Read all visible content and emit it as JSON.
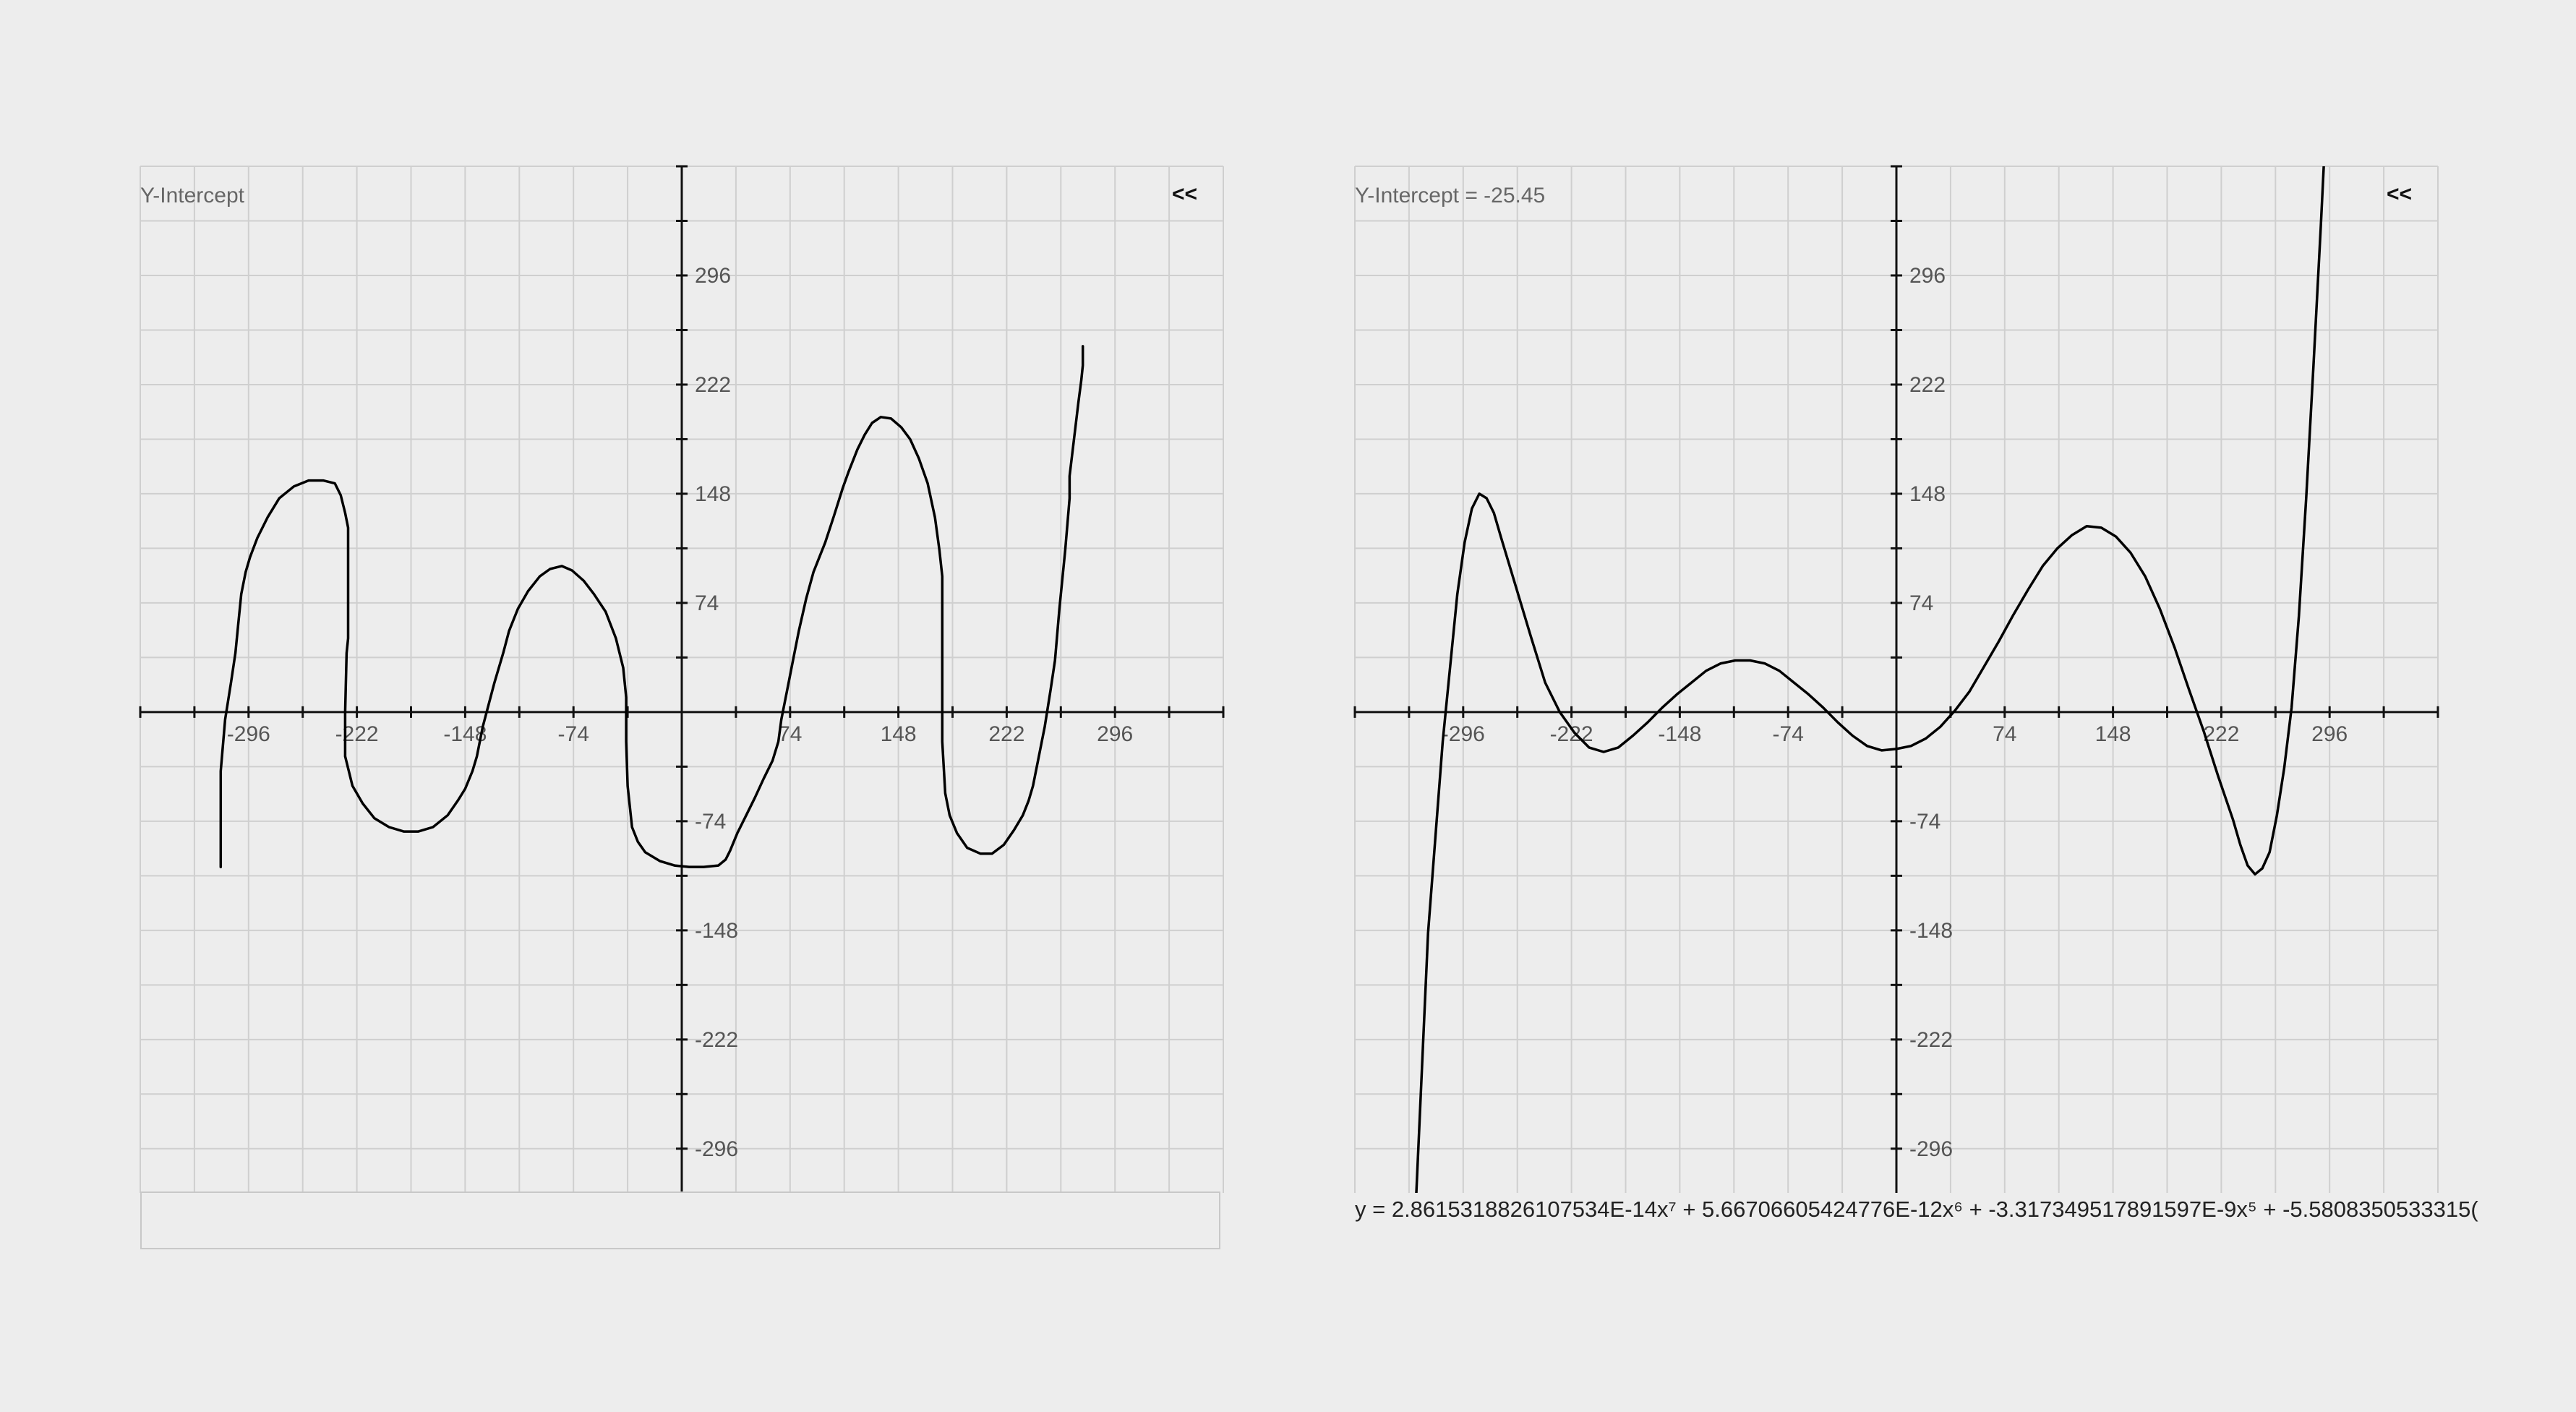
{
  "colors": {
    "background": "#ededed",
    "grid": "#cfcfcf",
    "axis": "#111111",
    "curve": "#000000",
    "label": "#555555"
  },
  "chart_data": [
    {
      "type": "line",
      "panel": "left",
      "header_label": "Y-Intercept",
      "collapse_label": "<<",
      "xlim": [
        -370,
        370
      ],
      "ylim": [
        -326,
        370
      ],
      "grid": true,
      "grid_step": 37,
      "x_tick_labels": [
        "-296",
        "-222",
        "-148",
        "-74",
        "74",
        "148",
        "222",
        "296"
      ],
      "y_tick_labels": [
        "296",
        "222",
        "148",
        "74",
        "-74",
        "-148",
        "-222",
        "-296"
      ],
      "formula_field": "",
      "series": [
        {
          "kind": "freehand",
          "points": [
            [
              -315,
              -105
            ],
            [
              -315,
              -40
            ],
            [
              -312,
              -5
            ],
            [
              -308,
              20
            ],
            [
              -305,
              40
            ],
            [
              -303,
              60
            ],
            [
              -301,
              80
            ],
            [
              -298,
              95
            ],
            [
              -295,
              105
            ],
            [
              -290,
              118
            ],
            [
              -283,
              132
            ],
            [
              -275,
              145
            ],
            [
              -265,
              153
            ],
            [
              -255,
              157
            ],
            [
              -245,
              157
            ],
            [
              -237,
              155
            ],
            [
              -233,
              147
            ],
            [
              -230,
              135
            ],
            [
              -228,
              125
            ],
            [
              -228,
              60
            ],
            [
              -228,
              50
            ],
            [
              -229,
              40
            ],
            [
              -230,
              0
            ],
            [
              -230,
              -30
            ],
            [
              -225,
              -50
            ],
            [
              -218,
              -62
            ],
            [
              -210,
              -72
            ],
            [
              -200,
              -78
            ],
            [
              -190,
              -81
            ],
            [
              -180,
              -81
            ],
            [
              -170,
              -78
            ],
            [
              -160,
              -70
            ],
            [
              -153,
              -60
            ],
            [
              -148,
              -52
            ],
            [
              -143,
              -40
            ],
            [
              -140,
              -30
            ],
            [
              -136,
              -10
            ],
            [
              -132,
              5
            ],
            [
              -128,
              20
            ],
            [
              -122,
              40
            ],
            [
              -118,
              55
            ],
            [
              -112,
              70
            ],
            [
              -105,
              82
            ],
            [
              -97,
              92
            ],
            [
              -90,
              97
            ],
            [
              -82,
              99
            ],
            [
              -75,
              96
            ],
            [
              -67,
              89
            ],
            [
              -60,
              80
            ],
            [
              -52,
              68
            ],
            [
              -45,
              50
            ],
            [
              -40,
              30
            ],
            [
              -38,
              10
            ],
            [
              -38,
              -20
            ],
            [
              -37,
              -50
            ],
            [
              -34,
              -78
            ],
            [
              -30,
              -88
            ],
            [
              -25,
              -95
            ],
            [
              -15,
              -101
            ],
            [
              -5,
              -104
            ],
            [
              5,
              -105
            ],
            [
              15,
              -105
            ],
            [
              25,
              -104
            ],
            [
              30,
              -100
            ],
            [
              33,
              -94
            ],
            [
              38,
              -82
            ],
            [
              44,
              -70
            ],
            [
              50,
              -58
            ],
            [
              56,
              -45
            ],
            [
              62,
              -33
            ],
            [
              66,
              -20
            ],
            [
              68,
              -5
            ],
            [
              72,
              15
            ],
            [
              76,
              35
            ],
            [
              80,
              55
            ],
            [
              85,
              77
            ],
            [
              90,
              95
            ],
            [
              94,
              105
            ],
            [
              98,
              115
            ],
            [
              104,
              133
            ],
            [
              110,
              152
            ],
            [
              114,
              163
            ],
            [
              120,
              178
            ],
            [
              125,
              188
            ],
            [
              130,
              196
            ],
            [
              136,
              200
            ],
            [
              143,
              199
            ],
            [
              150,
              193
            ],
            [
              156,
              185
            ],
            [
              162,
              172
            ],
            [
              168,
              155
            ],
            [
              173,
              132
            ],
            [
              176,
              110
            ],
            [
              178,
              92
            ],
            [
              178,
              80
            ],
            [
              178,
              40
            ],
            [
              178,
              -20
            ],
            [
              180,
              -55
            ],
            [
              183,
              -70
            ],
            [
              188,
              -82
            ],
            [
              195,
              -92
            ],
            [
              204,
              -96
            ],
            [
              212,
              -96
            ],
            [
              220,
              -90
            ],
            [
              227,
              -80
            ],
            [
              233,
              -70
            ],
            [
              237,
              -60
            ],
            [
              240,
              -50
            ],
            [
              244,
              -30
            ],
            [
              248,
              -10
            ],
            [
              252,
              15
            ],
            [
              255,
              35
            ],
            [
              258,
              70
            ],
            [
              262,
              110
            ],
            [
              265,
              145
            ],
            [
              265,
              160
            ],
            [
              268,
              185
            ],
            [
              271,
              210
            ],
            [
              273,
              225
            ],
            [
              274,
              235
            ],
            [
              274,
              248
            ]
          ]
        }
      ]
    },
    {
      "type": "line",
      "panel": "right",
      "header_label": "Y-Intercept = -25.45",
      "collapse_label": "<<",
      "xlim": [
        -370,
        370
      ],
      "ylim": [
        -326,
        370
      ],
      "grid": true,
      "grid_step": 37,
      "x_tick_labels": [
        "-296",
        "-222",
        "-148",
        "-74",
        "74",
        "148",
        "222",
        "296"
      ],
      "y_tick_labels": [
        "296",
        "222",
        "148",
        "74",
        "-74",
        "-148",
        "-222",
        "-296"
      ],
      "equation": "y = 2.8615318826107534E-14x⁷ + 5.66706605424776E-12x⁶ + -3.317349517891597E-9x⁵ + -5.5808350533315(",
      "series": [
        {
          "kind": "fitted-polynomial",
          "points": [
            [
              -328,
              -326
            ],
            [
              -320,
              -150
            ],
            [
              -310,
              -20
            ],
            [
              -300,
              80
            ],
            [
              -295,
              115
            ],
            [
              -290,
              138
            ],
            [
              -285,
              148
            ],
            [
              -280,
              145
            ],
            [
              -275,
              135
            ],
            [
              -270,
              118
            ],
            [
              -260,
              85
            ],
            [
              -250,
              52
            ],
            [
              -240,
              20
            ],
            [
              -230,
              0
            ],
            [
              -220,
              -14
            ],
            [
              -210,
              -24
            ],
            [
              -200,
              -27
            ],
            [
              -190,
              -24
            ],
            [
              -180,
              -16
            ],
            [
              -170,
              -7
            ],
            [
              -160,
              3
            ],
            [
              -150,
              12
            ],
            [
              -140,
              20
            ],
            [
              -130,
              28
            ],
            [
              -120,
              33
            ],
            [
              -110,
              35
            ],
            [
              -100,
              35
            ],
            [
              -90,
              33
            ],
            [
              -80,
              28
            ],
            [
              -70,
              20
            ],
            [
              -60,
              12
            ],
            [
              -50,
              3
            ],
            [
              -40,
              -7
            ],
            [
              -30,
              -16
            ],
            [
              -20,
              -23
            ],
            [
              -10,
              -26
            ],
            [
              0,
              -25
            ],
            [
              10,
              -23
            ],
            [
              20,
              -18
            ],
            [
              30,
              -10
            ],
            [
              40,
              1
            ],
            [
              50,
              14
            ],
            [
              60,
              31
            ],
            [
              70,
              48
            ],
            [
              80,
              66
            ],
            [
              90,
              83
            ],
            [
              100,
              99
            ],
            [
              110,
              111
            ],
            [
              120,
              120
            ],
            [
              130,
              126
            ],
            [
              140,
              125
            ],
            [
              150,
              119
            ],
            [
              160,
              108
            ],
            [
              170,
              92
            ],
            [
              180,
              70
            ],
            [
              190,
              44
            ],
            [
              200,
              15
            ],
            [
              210,
              -13
            ],
            [
              220,
              -44
            ],
            [
              230,
              -73
            ],
            [
              235,
              -90
            ],
            [
              240,
              -104
            ],
            [
              245,
              -110
            ],
            [
              250,
              -106
            ],
            [
              255,
              -95
            ],
            [
              260,
              -70
            ],
            [
              265,
              -38
            ],
            [
              270,
              3
            ],
            [
              275,
              65
            ],
            [
              280,
              145
            ],
            [
              285,
              235
            ],
            [
              290,
              330
            ],
            [
              292,
              370
            ]
          ]
        }
      ]
    }
  ]
}
